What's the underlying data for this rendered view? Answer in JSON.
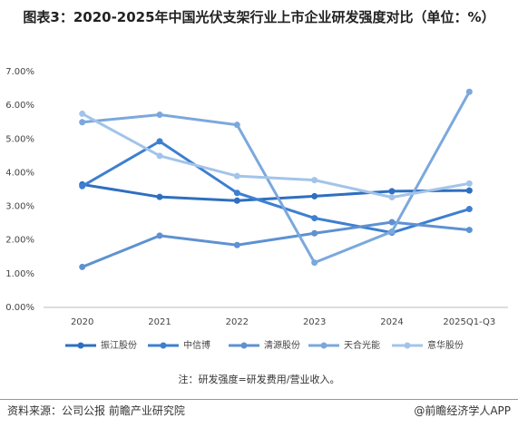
{
  "chart_data": {
    "type": "line",
    "title": "图表3：2020-2025年中国光伏支架行业上市企业研发强度对比（单位：%）",
    "categories": [
      "2020",
      "2021",
      "2022",
      "2023",
      "2024",
      "2025Q1-Q3"
    ],
    "series": [
      {
        "name": "振江股份",
        "color": "#2f6fbf",
        "values": [
          3.65,
          3.28,
          3.17,
          3.3,
          3.45,
          3.47
        ]
      },
      {
        "name": "中信博",
        "color": "#3d7fd1",
        "values": [
          3.6,
          4.93,
          3.4,
          2.65,
          2.22,
          2.92
        ]
      },
      {
        "name": "清源股份",
        "color": "#5e91d2",
        "values": [
          1.2,
          2.13,
          1.85,
          2.2,
          2.53,
          2.3
        ]
      },
      {
        "name": "天合光能",
        "color": "#7ba8dc",
        "values": [
          5.5,
          5.72,
          5.42,
          1.33,
          2.25,
          6.4
        ]
      },
      {
        "name": "意华股份",
        "color": "#a3c4ea",
        "values": [
          5.75,
          4.5,
          3.9,
          3.78,
          3.27,
          3.68
        ]
      }
    ],
    "ylim": [
      0,
      7
    ],
    "yticks": [
      {
        "value": 0,
        "label": "0.00%"
      },
      {
        "value": 1,
        "label": "1.00%"
      },
      {
        "value": 2,
        "label": "2.00%"
      },
      {
        "value": 3,
        "label": "3.00%"
      },
      {
        "value": 4,
        "label": "4.00%"
      },
      {
        "value": 5,
        "label": "5.00%"
      },
      {
        "value": 6,
        "label": "6.00%"
      },
      {
        "value": 7,
        "label": "7.00%"
      }
    ],
    "grid": false,
    "legend": "bottom",
    "note": "注：研发强度=研发费用/营业收入。",
    "source": "资料来源：公司公报  前瞻产业研究院",
    "credit": "@前瞻经济学人APP"
  }
}
